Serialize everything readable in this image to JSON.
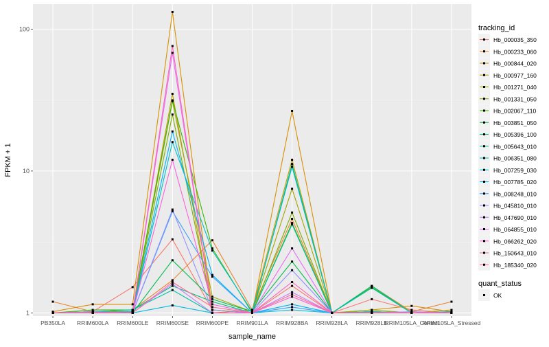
{
  "chart_data": {
    "type": "line",
    "title": "",
    "xlabel": "sample_name",
    "ylabel": "FPKM + 1",
    "y_scale": "log10",
    "ylim": [
      0.95,
      150
    ],
    "y_ticks": [
      1,
      10,
      100
    ],
    "y_tick_labels": [
      "1",
      "10",
      "100"
    ],
    "grid": true,
    "background": "#EBEBEB",
    "categories": [
      "PB350LA",
      "RRIM600LA",
      "RRIM600LE",
      "RRIM600SE",
      "RRIM600PE",
      "RRIM901LA",
      "RRIM928BA",
      "RRIM928LA",
      "RRIM928LE",
      "RRIM105LA_Control",
      "RRIM105LA_Stressed"
    ],
    "legend": {
      "position": "right",
      "title": "tracking_id",
      "entries": [
        "Hb_000035_350",
        "Hb_000233_060",
        "Hb_000844_020",
        "Hb_000977_160",
        "Hb_001271_040",
        "Hb_001331_050",
        "Hb_002067_110",
        "Hb_003851_050",
        "Hb_005396_100",
        "Hb_005643_010",
        "Hb_006351_080",
        "Hb_007259_030",
        "Hb_007785_020",
        "Hb_008248_010",
        "Hb_045810_010",
        "Hb_047690_010",
        "Hb_064855_010",
        "Hb_066262_020",
        "Hb_150643_010",
        "Hb_185340_020"
      ]
    },
    "point_legend": {
      "title": "quant_status",
      "label": "OK"
    },
    "series": [
      {
        "name": "Hb_000035_350",
        "color": "#F8766D",
        "values": [
          1.0,
          1.02,
          1.52,
          3.3,
          1.05,
          1.0,
          1.55,
          1.0,
          1.25,
          1.05,
          1.0
        ]
      },
      {
        "name": "Hb_000233_060",
        "color": "#EA8331",
        "values": [
          1.2,
          1.02,
          1.05,
          1.7,
          3.25,
          1.05,
          4.6,
          1.0,
          1.55,
          1.02,
          1.2
        ]
      },
      {
        "name": "Hb_000844_020",
        "color": "#D89000",
        "values": [
          1.02,
          1.15,
          1.15,
          132.0,
          1.05,
          1.0,
          26.5,
          1.0,
          1.05,
          1.12,
          1.02
        ]
      },
      {
        "name": "Hb_000977_160",
        "color": "#C09B00",
        "values": [
          1.0,
          1.02,
          1.0,
          35.0,
          1.0,
          1.05,
          12.0,
          1.0,
          1.02,
          1.0,
          1.05
        ]
      },
      {
        "name": "Hb_001271_040",
        "color": "#A3A500",
        "values": [
          1.0,
          1.02,
          1.02,
          31.0,
          1.3,
          1.02,
          7.5,
          1.0,
          1.05,
          1.0,
          1.02
        ]
      },
      {
        "name": "Hb_001331_050",
        "color": "#7CAE00",
        "values": [
          1.0,
          1.0,
          1.02,
          25.0,
          1.05,
          1.0,
          5.1,
          1.0,
          1.02,
          1.0,
          1.0
        ]
      },
      {
        "name": "Hb_002067_110",
        "color": "#39B600",
        "values": [
          1.0,
          1.05,
          1.05,
          31.5,
          2.85,
          1.0,
          4.3,
          1.0,
          1.52,
          1.0,
          1.0
        ]
      },
      {
        "name": "Hb_003851_050",
        "color": "#00BB4E",
        "values": [
          1.0,
          1.0,
          1.0,
          2.35,
          1.25,
          1.02,
          2.3,
          1.0,
          1.02,
          1.0,
          1.0
        ]
      },
      {
        "name": "Hb_005396_100",
        "color": "#00BF7D",
        "values": [
          1.0,
          1.02,
          1.05,
          1.55,
          1.2,
          1.0,
          11.2,
          1.0,
          1.55,
          1.0,
          1.0
        ]
      },
      {
        "name": "Hb_005643_010",
        "color": "#00C1A3",
        "values": [
          1.0,
          1.02,
          1.05,
          1.45,
          1.0,
          1.0,
          4.2,
          1.0,
          1.5,
          1.0,
          1.0
        ]
      },
      {
        "name": "Hb_006351_080",
        "color": "#00BFC4",
        "values": [
          1.0,
          1.0,
          1.0,
          16.0,
          2.75,
          1.02,
          10.7,
          1.0,
          1.02,
          1.0,
          1.0
        ]
      },
      {
        "name": "Hb_007259_030",
        "color": "#00BAE0",
        "values": [
          1.0,
          1.0,
          1.0,
          1.13,
          1.0,
          1.0,
          1.05,
          1.0,
          1.0,
          1.0,
          1.0
        ]
      },
      {
        "name": "Hb_007785_020",
        "color": "#00B0F6",
        "values": [
          1.0,
          1.0,
          1.02,
          19.0,
          1.85,
          1.0,
          1.15,
          1.0,
          1.0,
          1.0,
          1.02
        ]
      },
      {
        "name": "Hb_008248_010",
        "color": "#35A2FF",
        "values": [
          1.0,
          1.0,
          1.0,
          5.2,
          1.8,
          1.0,
          1.1,
          1.0,
          1.0,
          1.0,
          1.0
        ]
      },
      {
        "name": "Hb_045810_010",
        "color": "#9590FF",
        "values": [
          1.0,
          1.02,
          1.0,
          5.35,
          1.05,
          1.0,
          2.0,
          1.0,
          1.0,
          1.02,
          1.0
        ]
      },
      {
        "name": "Hb_047690_010",
        "color": "#C77CFF",
        "values": [
          1.0,
          1.0,
          1.0,
          1.6,
          1.0,
          1.0,
          1.4,
          1.0,
          1.0,
          1.0,
          1.0
        ]
      },
      {
        "name": "Hb_064855_010",
        "color": "#E76BF3",
        "values": [
          1.0,
          1.0,
          1.0,
          68.0,
          1.0,
          1.0,
          2.85,
          1.0,
          1.0,
          1.0,
          1.0
        ]
      },
      {
        "name": "Hb_066262_020",
        "color": "#FA62DB",
        "values": [
          1.0,
          1.0,
          1.0,
          12.0,
          1.15,
          1.0,
          1.3,
          1.0,
          1.0,
          1.0,
          1.0
        ]
      },
      {
        "name": "Hb_150643_010",
        "color": "#FF62BC",
        "values": [
          1.0,
          1.0,
          1.0,
          76.0,
          1.0,
          1.0,
          1.65,
          1.0,
          1.0,
          1.0,
          1.0
        ]
      },
      {
        "name": "Hb_185340_020",
        "color": "#FF6C91",
        "values": [
          1.0,
          1.0,
          1.0,
          1.65,
          1.1,
          1.0,
          1.35,
          1.0,
          1.0,
          1.0,
          1.0
        ]
      }
    ]
  }
}
